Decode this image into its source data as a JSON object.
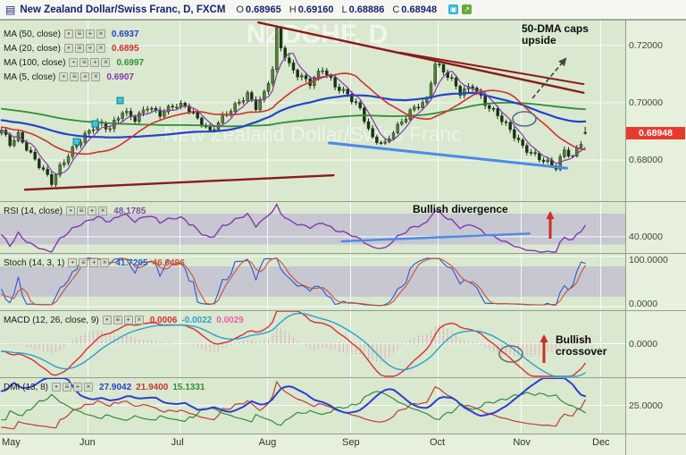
{
  "header": {
    "title": "New Zealand Dollar/Swiss Franc, D, FXCM",
    "ohlc": {
      "open_label": "O",
      "open": "0.68965",
      "high_label": "H",
      "high": "0.69160",
      "low_label": "L",
      "low": "0.68886",
      "close_label": "C",
      "close": "0.68948"
    }
  },
  "icons": {
    "window": "▤",
    "visibility": "•",
    "properties": "≡",
    "add": "+",
    "close": "×",
    "camera": "▣",
    "share": "↗"
  },
  "main_legend": [
    {
      "label": "MA (50, close)",
      "value": "0.6937",
      "color": "#2244cc"
    },
    {
      "label": "MA (20, close)",
      "value": "0.6895",
      "color": "#d03030"
    },
    {
      "label": "MA (100, close)",
      "value": "0.6997",
      "color": "#2f8f35"
    },
    {
      "label": "MA (5, close)",
      "value": "0.6907",
      "color": "#8a35b0"
    }
  ],
  "indicator_panels": [
    {
      "id": "rsi",
      "label": "RSI (14, close)",
      "values": [
        {
          "text": "48.1785",
          "color": "#7a4fa0"
        }
      ],
      "axis": [
        {
          "text": "40.0000",
          "value": 40
        }
      ]
    },
    {
      "id": "stoch",
      "label": "Stoch (14, 3, 1)",
      "values": [
        {
          "text": "41.7205",
          "color": "#2e58d0"
        },
        {
          "text": "46.6496",
          "color": "#d05030"
        }
      ],
      "axis": [
        {
          "text": "100.0000",
          "value": 100
        },
        {
          "text": "0.0000",
          "value": 0
        }
      ]
    },
    {
      "id": "macd",
      "label": "MACD (12, 26, close, 9)",
      "values": [
        {
          "text": "0.0006",
          "color": "#d83030"
        },
        {
          "text": "-0.0022",
          "color": "#2e9fd0"
        },
        {
          "text": "0.0029",
          "color": "#ef5fa7"
        }
      ],
      "axis": [
        {
          "text": "0.0000",
          "value": 0
        }
      ]
    },
    {
      "id": "dmi",
      "label": "DMI (13, 8)",
      "values": [
        {
          "text": "27.9042",
          "color": "#2c3fd0"
        },
        {
          "text": "21.9400",
          "color": "#c23b2e"
        },
        {
          "text": "15.1331",
          "color": "#2f8f35"
        }
      ],
      "axis": [
        {
          "text": "25.0000",
          "value": 25
        }
      ]
    }
  ],
  "price_axis": {
    "labels": [
      {
        "text": "0.72000",
        "value": 0.72
      },
      {
        "text": "0.70000",
        "value": 0.7
      },
      {
        "text": "0.68000",
        "value": 0.68
      }
    ],
    "current": {
      "text": "0.68948",
      "value": 0.68948
    }
  },
  "time_axis": [
    {
      "label": "May",
      "day": 0
    },
    {
      "label": "Jun",
      "day": 21
    },
    {
      "label": "Jul",
      "day": 43
    },
    {
      "label": "Aug",
      "day": 64
    },
    {
      "label": "Sep",
      "day": 84
    },
    {
      "label": "Oct",
      "day": 105
    },
    {
      "label": "Nov",
      "day": 125
    },
    {
      "label": "Dec",
      "day": 144
    }
  ],
  "watermark": {
    "line1": "NZDCHF, D",
    "line2": "New Zealand Dollar/Swiss Franc"
  },
  "annotations": {
    "dma_caps": "50-DMA caps upside",
    "bullish_divergence": "Bullish divergence",
    "bullish_crossover": "Bullish crossover"
  },
  "chart_data": {
    "type": "candlestick",
    "instrument": "NZD/CHF",
    "timeframe": "D",
    "source": "FXCM",
    "days": 140,
    "price_range": [
      0.666,
      0.729
    ],
    "price_gridlines": [
      0.68,
      0.7,
      0.72
    ],
    "last_candle": {
      "open": 0.68965,
      "high": 0.6916,
      "low": 0.68886,
      "close": 0.68948
    },
    "price_keypoints": [
      [
        0,
        0.69
      ],
      [
        2,
        0.6855
      ],
      [
        4,
        0.689
      ],
      [
        7,
        0.6825
      ],
      [
        10,
        0.6765
      ],
      [
        12,
        0.672
      ],
      [
        14,
        0.677
      ],
      [
        17,
        0.6835
      ],
      [
        20,
        0.689
      ],
      [
        23,
        0.6935
      ],
      [
        26,
        0.691
      ],
      [
        29,
        0.6965
      ],
      [
        32,
        0.694
      ],
      [
        35,
        0.699
      ],
      [
        38,
        0.6965
      ],
      [
        41,
        0.699
      ],
      [
        44,
        0.6985
      ],
      [
        47,
        0.694
      ],
      [
        50,
        0.69
      ],
      [
        53,
        0.6955
      ],
      [
        56,
        0.699
      ],
      [
        59,
        0.7025
      ],
      [
        61,
        0.698
      ],
      [
        63,
        0.703
      ],
      [
        65,
        0.712
      ],
      [
        66,
        0.7255
      ],
      [
        67,
        0.72
      ],
      [
        69,
        0.7135
      ],
      [
        71,
        0.71
      ],
      [
        74,
        0.7065
      ],
      [
        77,
        0.7115
      ],
      [
        80,
        0.706
      ],
      [
        83,
        0.7035
      ],
      [
        86,
        0.698
      ],
      [
        89,
        0.687
      ],
      [
        92,
        0.685
      ],
      [
        94,
        0.69
      ],
      [
        96,
        0.6935
      ],
      [
        98,
        0.6975
      ],
      [
        100,
        0.6995
      ],
      [
        102,
        0.701
      ],
      [
        104,
        0.7135
      ],
      [
        106,
        0.7105
      ],
      [
        108,
        0.7075
      ],
      [
        110,
        0.7035
      ],
      [
        113,
        0.7065
      ],
      [
        116,
        0.7
      ],
      [
        119,
        0.6955
      ],
      [
        122,
        0.69
      ],
      [
        125,
        0.6845
      ],
      [
        128,
        0.682
      ],
      [
        131,
        0.6795
      ],
      [
        133,
        0.6775
      ],
      [
        135,
        0.683
      ],
      [
        137,
        0.6805
      ],
      [
        139,
        0.686
      ],
      [
        140,
        0.68948
      ]
    ],
    "moving_averages": [
      {
        "period": 50,
        "color": "#2244cc",
        "width": 2.2,
        "legend": 0.6937
      },
      {
        "period": 20,
        "color": "#d03030",
        "width": 1.6,
        "legend": 0.6895
      },
      {
        "period": 100,
        "color": "#2f8f35",
        "width": 1.8,
        "legend": 0.6997
      },
      {
        "period": 5,
        "color": "#8a35b0",
        "width": 1.2,
        "legend": 0.6907
      }
    ],
    "trendlines": [
      {
        "name": "upper-resistance",
        "color": "#8b1a1a",
        "width": 2.4,
        "from": [
          62,
          0.728
        ],
        "to": [
          140,
          0.7035
        ]
      },
      {
        "name": "inner-resistance",
        "color": "#8b1a1a",
        "width": 2,
        "from": [
          96,
          0.7175
        ],
        "to": [
          140,
          0.7065
        ]
      },
      {
        "name": "lower-support",
        "color": "#8b1a1a",
        "width": 2.4,
        "from": [
          6,
          0.6697
        ],
        "to": [
          80,
          0.6747
        ]
      },
      {
        "name": "price-divergence-line",
        "color": "#4b8bea",
        "width": 3,
        "from": [
          79,
          0.686
        ],
        "to": [
          136,
          0.6772
        ]
      }
    ],
    "rsi": {
      "period": 14,
      "band": [
        30,
        70
      ],
      "gridline": 40,
      "display_range": [
        20,
        85
      ],
      "trendline": {
        "from": [
          82,
          34
        ],
        "to": [
          127,
          44
        ],
        "color": "#4b8bea",
        "width": 2.4
      },
      "last": 48.1785
    },
    "stoch": {
      "k": 14,
      "slowing": 3,
      "d": 1,
      "band": [
        20,
        80
      ],
      "display_range": [
        -5,
        105
      ],
      "last_k": 41.7205,
      "last_d": 46.6496
    },
    "macd": {
      "fast": 12,
      "slow": 26,
      "signal": 9,
      "display_range": [
        -0.0048,
        0.0048
      ],
      "last_macd": 0.0006,
      "last_signal": -0.0022,
      "last_hist": 0.0029
    },
    "dmi": {
      "period": 13,
      "adx_period": 8,
      "display_range": [
        0,
        50
      ],
      "gridline": 25,
      "last_adx": 27.9042,
      "last_plus_di": 21.94,
      "last_minus_di": 15.1331
    }
  }
}
